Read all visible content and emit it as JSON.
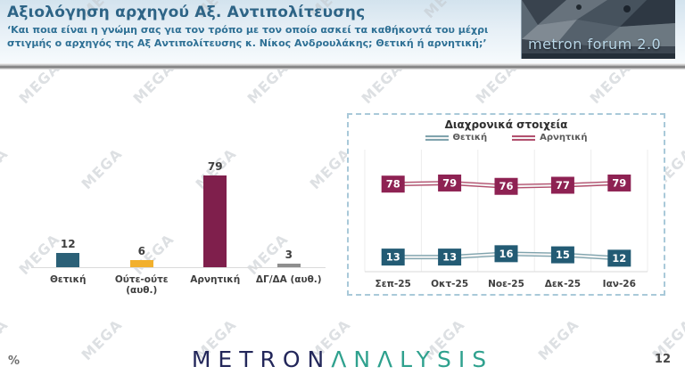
{
  "header": {
    "title": "Αξιολόγηση αρχηγού Αξ. Αντιπολίτευσης",
    "subtitle": "‘Και ποια είναι η γνώμη σας για τον τρόπο με τον οποίο ασκεί τα καθήκοντά του μέχρι στιγμής ο αρχηγός της Αξ Αντιπολίτευσης κ. Νίκος Ανδρουλάκης; Θετική ή αρνητική;’",
    "logo_text": "metron forum 2.0"
  },
  "watermark": {
    "text": "MEGA"
  },
  "footer": {
    "logo_part1": "METRON",
    "logo_part2": "ΛNΛLYSIS",
    "percent_label": "%",
    "page_number": "12"
  },
  "colors": {
    "positive": "#2b6077",
    "neutral": "#f2b02d",
    "negative": "#7f1f4c",
    "negative_box": "#8e2253",
    "dk_gray": "#8e8e8e",
    "positive_line": "#7fa3ad",
    "negative_line": "#b2506e"
  },
  "chart_data": [
    {
      "type": "bar",
      "title": "",
      "categories": [
        "Θετική",
        "Ούτε-ούτε (αυθ.)",
        "Αρνητική",
        "ΔΓ/ΔΑ (αυθ.)"
      ],
      "values": [
        12,
        6,
        79,
        3
      ],
      "bar_colors": [
        "#2b6077",
        "#f2b02d",
        "#7f1f4c",
        "#8e8e8e"
      ],
      "xlabel": "",
      "ylabel": "",
      "ylim": [
        0,
        100
      ],
      "grid": false,
      "data_labels": true
    },
    {
      "type": "line",
      "title": "Διαχρονικά στοιχεία",
      "categories": [
        "Σεπ-25",
        "Οκτ-25",
        "Νοε-25",
        "Δεκ-25",
        "Ιαν-26"
      ],
      "series": [
        {
          "name": "Θετική",
          "values": [
            13,
            13,
            16,
            15,
            12
          ],
          "box_color": "#235b74",
          "line_color": "#7fa3ad"
        },
        {
          "name": "Αρνητική",
          "values": [
            78,
            79,
            76,
            77,
            79
          ],
          "box_color": "#8e2253",
          "line_color": "#b2506e"
        }
      ],
      "legend_position": "top",
      "xlabel": "",
      "ylabel": "",
      "ylim": [
        0,
        115
      ],
      "grid": true,
      "data_labels": true
    }
  ]
}
